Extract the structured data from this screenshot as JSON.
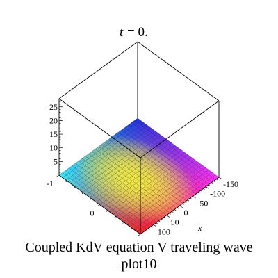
{
  "caption": {
    "line1": "Coupled KdV equation V traveling wave",
    "line2": "plot10"
  },
  "chart_data": {
    "type": "surface3d",
    "title_var": "t",
    "title_value": "= 0.",
    "xlabel": "x",
    "ylabel": "",
    "zlabel": "",
    "xlim": [
      -150,
      150
    ],
    "ylim": [
      -1,
      1
    ],
    "zlim": [
      0,
      28
    ],
    "x_ticks": [
      "-150",
      "-100",
      "-50",
      "0",
      "50",
      "100"
    ],
    "y_ticks": [
      "-1",
      "0"
    ],
    "z_ticks": [
      "5",
      "10",
      "15",
      "20",
      "25"
    ],
    "surface_z_value": 0,
    "colormap": "hue",
    "grid": true,
    "colors": {
      "corner_x_min_y_min": "#2030e0",
      "corner_x_min_y_max": "#ff30ff",
      "corner_x_max_y_min": "#30f0ff",
      "corner_x_max_y_max": "#ff2020",
      "middle": "#ffff30"
    }
  }
}
